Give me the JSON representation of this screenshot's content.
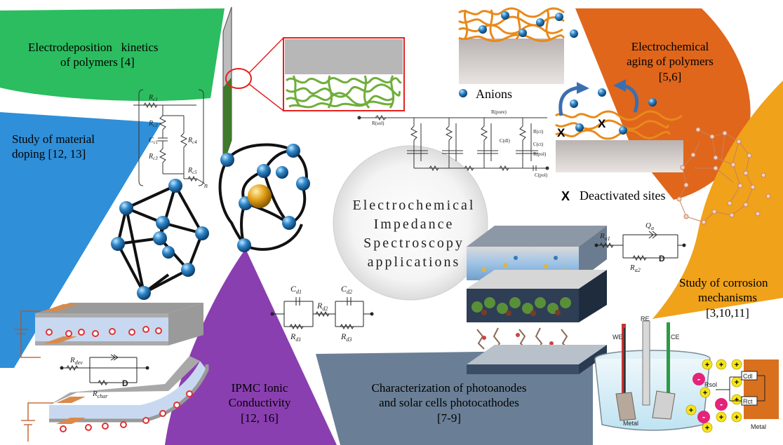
{
  "center": {
    "line1": "Electrochemical",
    "line2": "Impedance",
    "line3": "Spectroscopy",
    "line4": "applications"
  },
  "sections": {
    "electrodeposition": {
      "line1": "Electrodeposition   kinetics",
      "line2": "of polymers [4]",
      "color": "#2bbd5f"
    },
    "aging": {
      "line1": "Electrochemical",
      "line2": "aging of polymers",
      "line3": "[5,6]",
      "color": "#e0661c"
    },
    "doping": {
      "line1": "Study of material",
      "line2": "doping [12, 13]",
      "color": "#2f8fd8"
    },
    "corrosion": {
      "line1": "Study of corrosion",
      "line2": "mechanisms",
      "line3": "[3,10,11]",
      "color": "#f0a21a"
    },
    "ipmc": {
      "line1": "IPMC Ionic",
      "line2": "Conductivity",
      "line3": "[12, 16]",
      "color": "#8a3fb0"
    },
    "photo": {
      "line1": "Characterization of photoanodes",
      "line2": "and solar cells photocathodes",
      "line3": "[7-9]",
      "color": "#6a7f96"
    }
  },
  "legend": {
    "anions": "Anions",
    "x_mark": "X",
    "deactivated": "Deactivated sites"
  },
  "circuits": {
    "doping": {
      "r1": "R",
      "r1_sub": "c1",
      "r2": "R",
      "r2_sub": "c2",
      "c1": "C",
      "c1_sub": "c1",
      "r3": "R",
      "r3_sub": "c3",
      "r4": "R",
      "r4_sub": "c4",
      "r5": "R",
      "r5_sub": "c5",
      "n": "n"
    },
    "aging": {
      "rsol": "R(sol)",
      "rpore": "R(pore)",
      "rct": "R(ct)",
      "cdl": "C(dl)",
      "cct": "C(ct)",
      "rpol": "R(pol)",
      "cpol": "C(pol)"
    },
    "ipmc_top": {
      "rdev": "R",
      "rdev_sub": "dev",
      "rchar": "R",
      "rchar_sub": "char",
      "d": "D"
    },
    "ipmc_center": {
      "cd1": "C",
      "cd1_sub": "d1",
      "rd2": "R",
      "rd2_sub": "d2",
      "cd2": "C",
      "cd2_sub": "d2",
      "rd1": "R",
      "rd1_sub": "d1",
      "rd3": "R",
      "rd3_sub": "d3"
    },
    "corrosion": {
      "ra1": "R",
      "ra1_sub": "a1",
      "qa": "Q",
      "qa_sub": "a",
      "ra2": "R",
      "ra2_sub": "a2",
      "d": "D"
    }
  },
  "cell": {
    "we": "WE",
    "re": "RE",
    "ce": "CE",
    "metal_left": "Metal",
    "metal_right": "Metal",
    "rsol": "Rsol",
    "cdl": "Cdl",
    "rct": "Rct",
    "minus": "-",
    "plus": "+"
  }
}
